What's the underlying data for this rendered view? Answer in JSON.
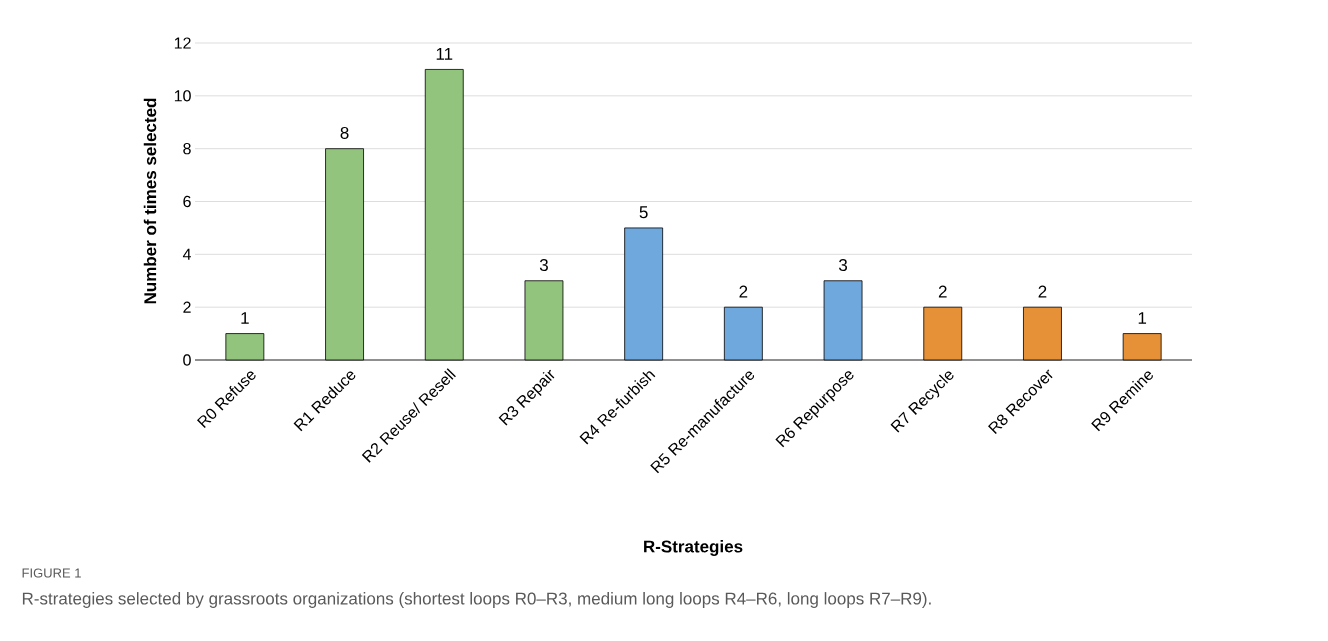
{
  "chart_data": {
    "type": "bar",
    "xlabel": "R-Strategies",
    "ylabel": "Number of times selected",
    "categories": [
      "R0 Refuse",
      "R1 Reduce",
      "R2 Reuse/ Resell",
      "R3 Repair",
      "R4 Re-furbish",
      "R5 Re-manufacture",
      "R6 Repurpose",
      "R7 Recycle",
      "R8 Recover",
      "R9 Remine"
    ],
    "values": [
      1,
      8,
      11,
      3,
      5,
      2,
      3,
      2,
      2,
      1
    ],
    "colors": [
      "#93c47d",
      "#93c47d",
      "#93c47d",
      "#93c47d",
      "#6fa8dc",
      "#6fa8dc",
      "#6fa8dc",
      "#e69138",
      "#e69138",
      "#e69138"
    ],
    "ylim": [
      0,
      12
    ],
    "yticks": [
      0,
      2,
      4,
      6,
      8,
      10,
      12
    ],
    "grid": "y",
    "data_labels": true,
    "annotations": [
      "FIGURE 1",
      "R-strategies selected by grassroots organizations (shortest loops R0–R3, medium long loops R4–R6, long loops R7–R9)."
    ]
  }
}
